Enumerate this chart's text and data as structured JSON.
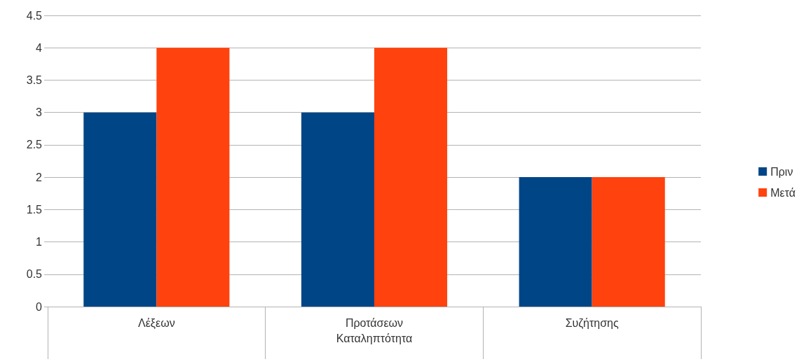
{
  "chart_data": {
    "type": "bar",
    "categories": [
      "Λέξεων",
      "Προτάσεων Καταληπτότητα",
      "Συζήτησης"
    ],
    "series": [
      {
        "name": "Πριν",
        "color": "#004586",
        "values": [
          3,
          3,
          2
        ]
      },
      {
        "name": "Μετά",
        "color": "#ff420e",
        "values": [
          4,
          4,
          2
        ]
      }
    ],
    "ylim": [
      0,
      4.5
    ],
    "yticks": [
      0,
      0.5,
      1,
      1.5,
      2,
      2.5,
      3,
      3.5,
      4,
      4.5
    ],
    "grid": "y",
    "legend": "right"
  }
}
